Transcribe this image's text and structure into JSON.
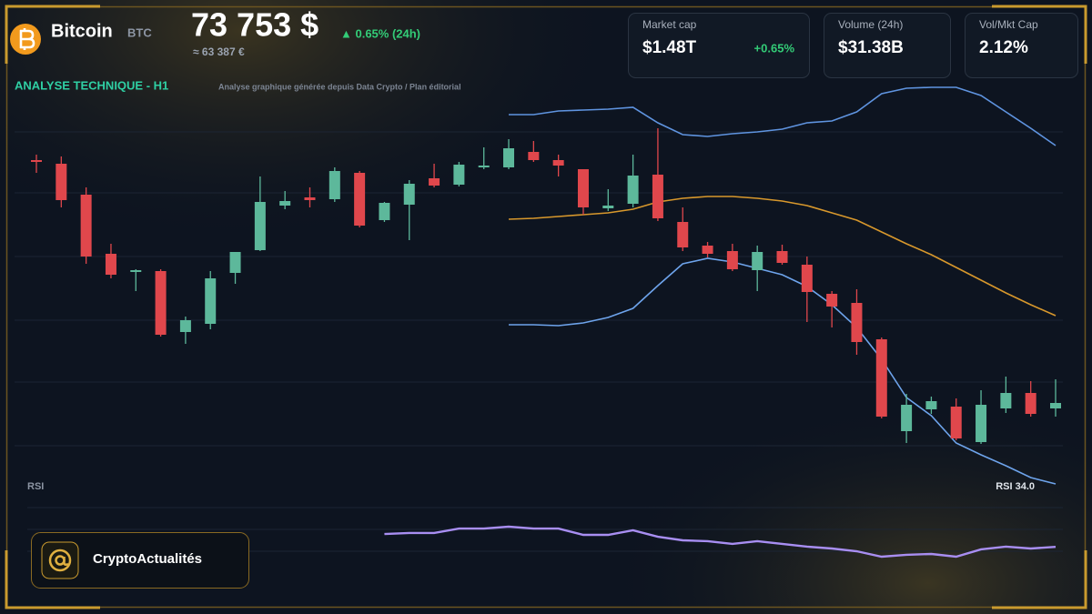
{
  "header": {
    "coin_name": "Bitcoin",
    "ticker": "BTC",
    "price": "73 753 $",
    "change": "▲ 0.65% (24h)",
    "price_eur": "≈ 63 387 €",
    "section_title": "ANALYSE TECHNIQUE - H1",
    "section_note": "Analyse graphique générée depuis Data Crypto / Plan éditorial"
  },
  "stats": [
    {
      "label": "Market cap",
      "value": "$1.48T",
      "change": "+0.65%"
    },
    {
      "label": "Volume (24h)",
      "value": "$31.38B"
    },
    {
      "label": "Vol/Mkt Cap",
      "value": "2.12%"
    }
  ],
  "brand": "CryptoActualités",
  "chart_data": [
    {
      "type": "candlestick",
      "ylim": [
        72800,
        77300
      ],
      "up_color": "#5db89b",
      "down_color": "#e0474c",
      "open": [
        76440,
        76400,
        76060,
        75410,
        75210,
        75220,
        74550,
        74640,
        75200,
        75450,
        75940,
        76030,
        76010,
        76300,
        75780,
        75950,
        76240,
        76170,
        76360,
        76360,
        76530,
        76440,
        76340,
        75910,
        75960,
        76280,
        75760,
        75500,
        75440,
        75230,
        75440,
        75290,
        74970,
        74870,
        74470,
        73460,
        73700,
        73730,
        73340,
        73710,
        73880,
        73710
      ],
      "high": [
        76500,
        76480,
        76140,
        75520,
        75240,
        75240,
        74720,
        75220,
        75430,
        76260,
        76100,
        76140,
        76360,
        76320,
        75980,
        76220,
        76400,
        76420,
        76580,
        76670,
        76650,
        76500,
        76340,
        76120,
        76500,
        76790,
        75920,
        75540,
        75520,
        75500,
        75510,
        75380,
        75000,
        75020,
        74490,
        73870,
        73840,
        73820,
        73910,
        74060,
        74010,
        74030
      ],
      "low": [
        76300,
        75920,
        75300,
        75140,
        75000,
        74500,
        74420,
        74580,
        75080,
        75440,
        75900,
        75920,
        75980,
        75700,
        75760,
        75560,
        76140,
        76150,
        76340,
        76340,
        76420,
        76260,
        75840,
        75880,
        75920,
        75770,
        75440,
        75370,
        75220,
        75000,
        75290,
        74660,
        74600,
        74300,
        73600,
        73330,
        73650,
        73360,
        73320,
        73660,
        73620,
        73620
      ],
      "close": [
        76420,
        76000,
        75380,
        75180,
        75230,
        74520,
        74680,
        75140,
        75430,
        75980,
        75990,
        76000,
        76320,
        75720,
        75970,
        76180,
        76160,
        76390,
        76380,
        76570,
        76440,
        76380,
        75920,
        75940,
        76270,
        75800,
        75480,
        75410,
        75240,
        75430,
        75310,
        74990,
        74830,
        74440,
        73620,
        73750,
        73790,
        73380,
        73750,
        73880,
        73650,
        73770
      ],
      "overlays": [
        {
          "color": "#5f94e0",
          "values": [
            null,
            null,
            null,
            null,
            null,
            null,
            null,
            null,
            null,
            null,
            null,
            null,
            null,
            null,
            null,
            null,
            null,
            null,
            null,
            76940,
            76940,
            76980,
            76990,
            77000,
            77020,
            76850,
            76720,
            76700,
            76730,
            76750,
            76780,
            76850,
            76870,
            76970,
            77170,
            77230,
            77240,
            77240,
            77150,
            76970,
            76790,
            76600
          ]
        },
        {
          "color": "#d8982c",
          "values": [
            null,
            null,
            null,
            null,
            null,
            null,
            null,
            null,
            null,
            null,
            null,
            null,
            null,
            null,
            null,
            null,
            null,
            null,
            null,
            75790,
            75800,
            75820,
            75840,
            75860,
            75900,
            75980,
            76020,
            76040,
            76040,
            76020,
            75990,
            75940,
            75860,
            75780,
            75650,
            75520,
            75400,
            75260,
            75120,
            74980,
            74850,
            74730
          ]
        },
        {
          "color": "#6ea4ec",
          "values": [
            null,
            null,
            null,
            null,
            null,
            null,
            null,
            null,
            null,
            null,
            null,
            null,
            null,
            null,
            null,
            null,
            null,
            null,
            null,
            74630,
            74630,
            74620,
            74650,
            74710,
            74810,
            75060,
            75300,
            75360,
            75320,
            75250,
            75180,
            75050,
            74850,
            74600,
            74250,
            73830,
            73630,
            73330,
            73200,
            73080,
            72950,
            72880
          ]
        }
      ]
    },
    {
      "type": "line",
      "title": "RSI",
      "value_text": "RSI 34.0",
      "ylim": [
        25,
        75
      ],
      "color": "#a88ef2",
      "values": [
        null,
        null,
        null,
        null,
        null,
        null,
        null,
        null,
        null,
        null,
        null,
        null,
        null,
        null,
        45.8,
        46.7,
        46.7,
        50.8,
        50.8,
        52.5,
        50.8,
        50.8,
        45.0,
        45.0,
        49.2,
        43.3,
        40.0,
        39.2,
        36.7,
        39.2,
        36.7,
        34.2,
        32.5,
        30.0,
        25.0,
        26.7,
        27.5,
        25.0,
        31.7,
        34.2,
        32.5,
        34.0
      ]
    }
  ]
}
